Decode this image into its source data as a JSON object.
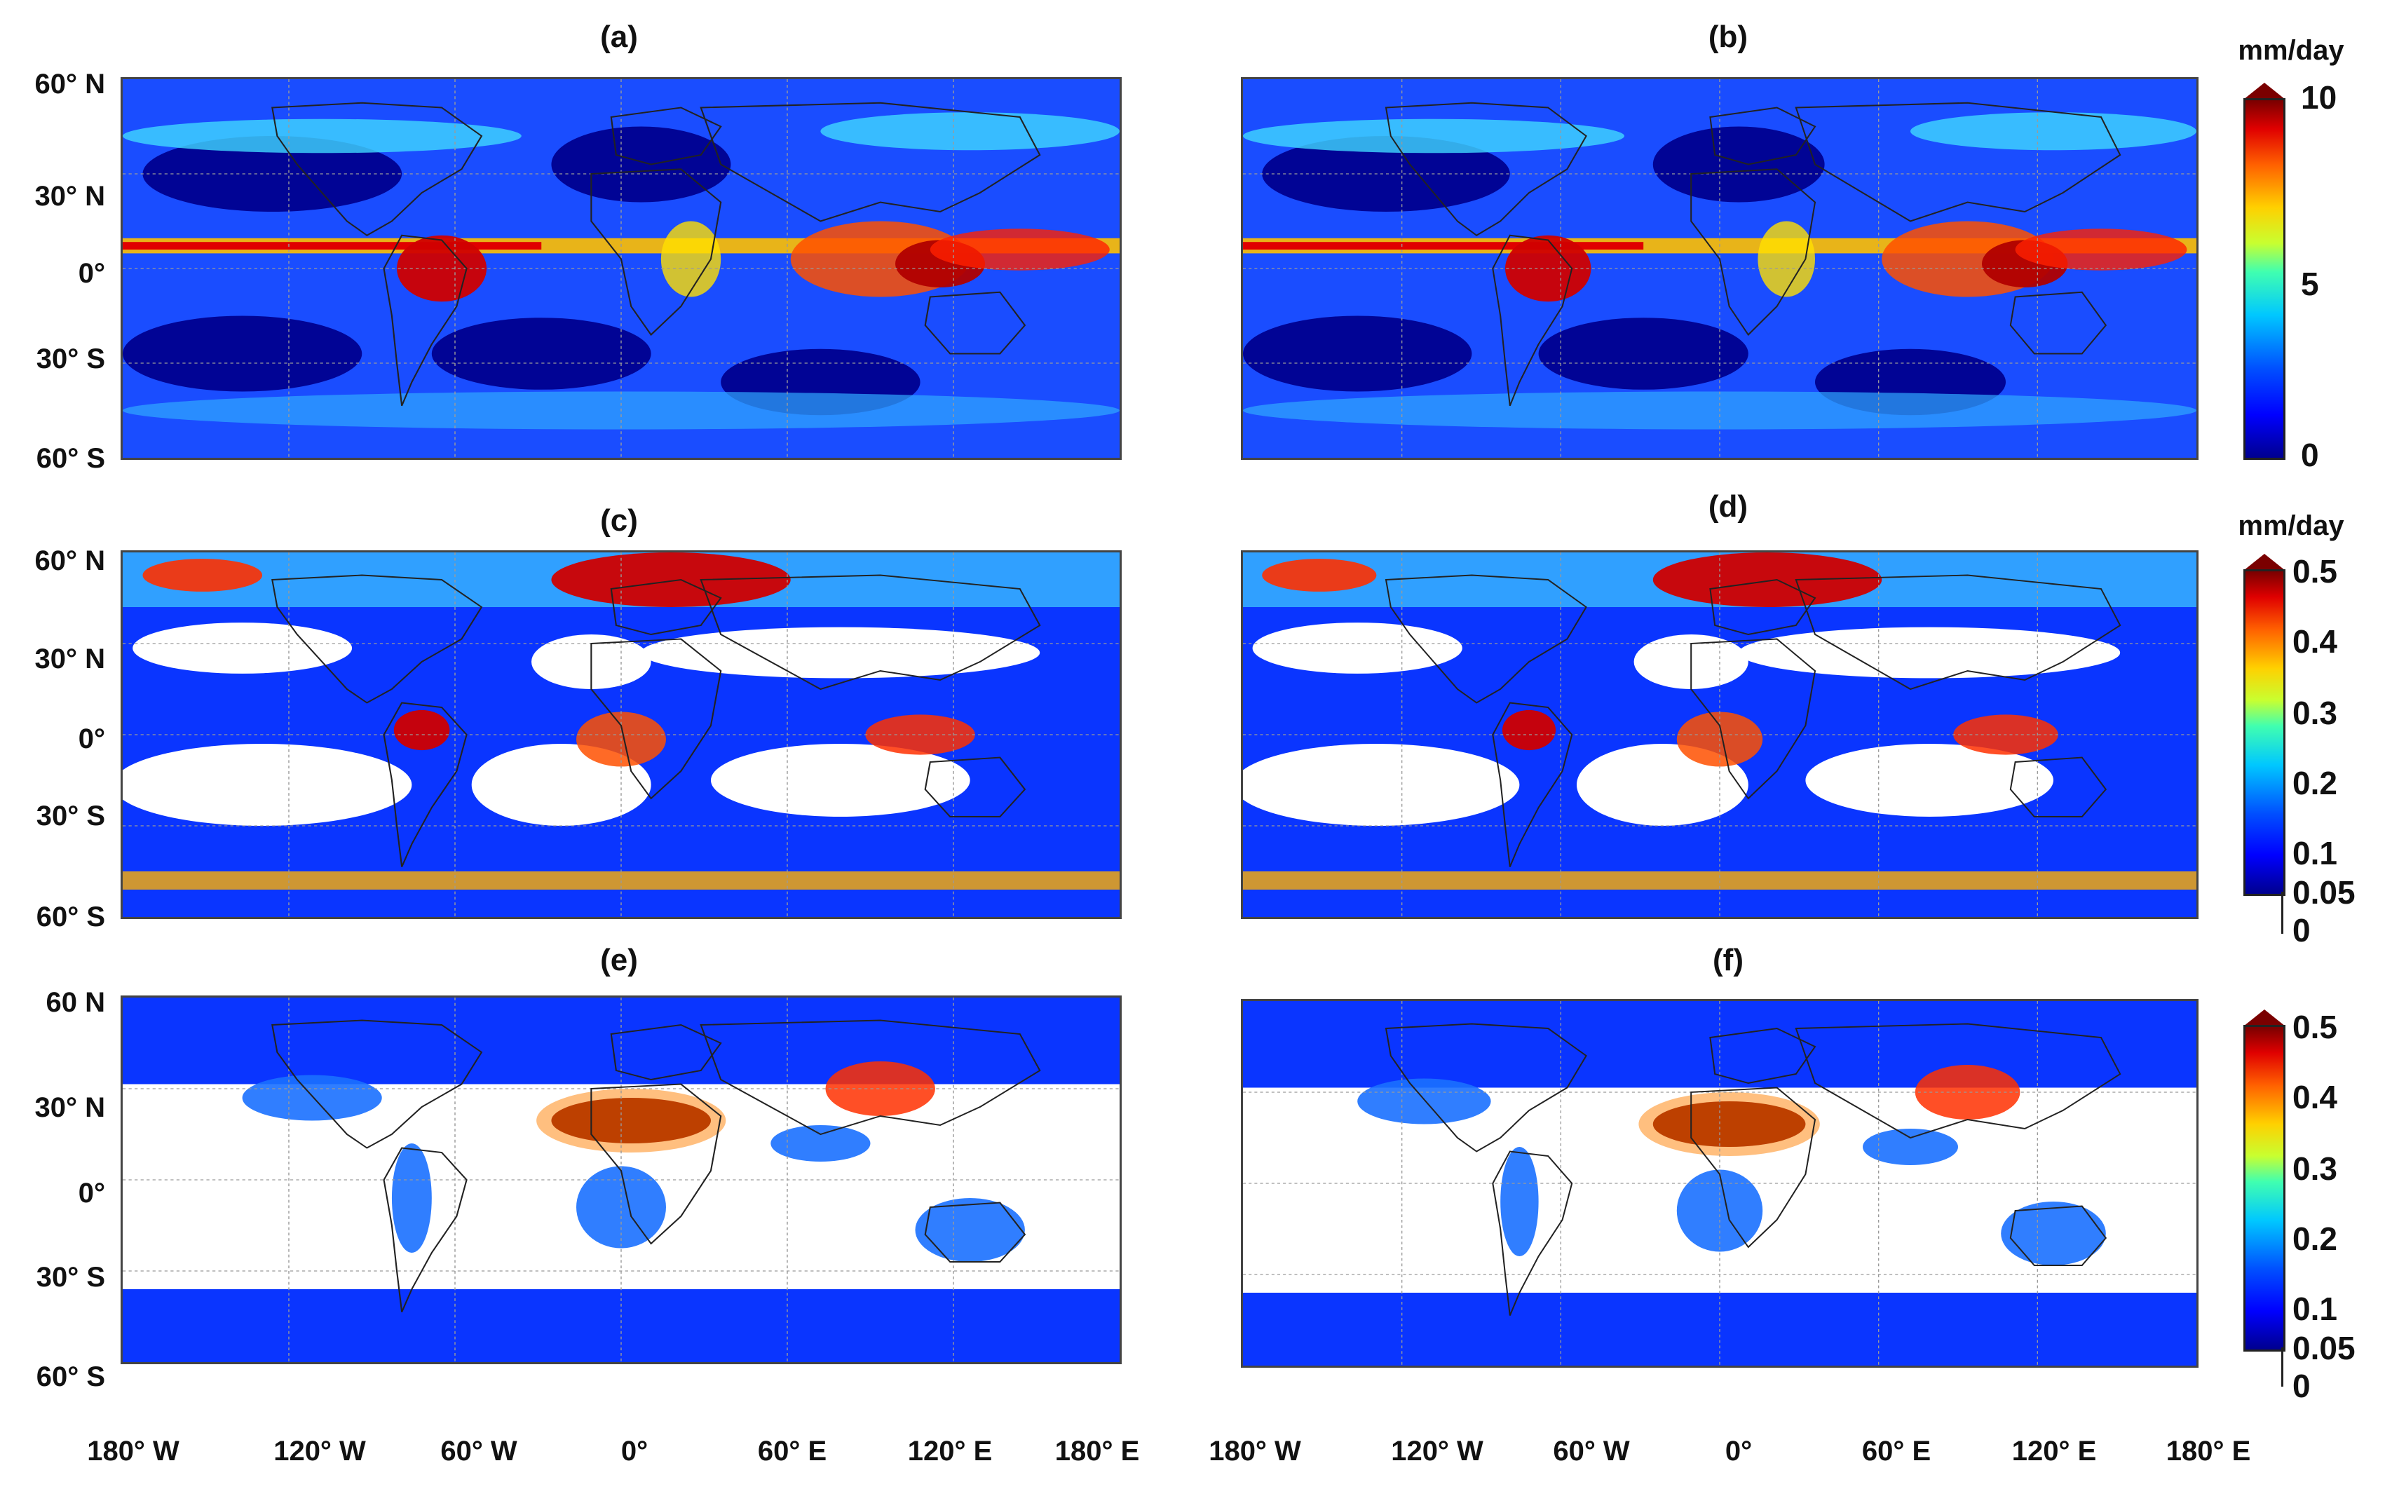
{
  "panels": [
    {
      "id": "a",
      "label": "(a)"
    },
    {
      "id": "b",
      "label": "(b)"
    },
    {
      "id": "c",
      "label": "(c)"
    },
    {
      "id": "d",
      "label": "(d)"
    },
    {
      "id": "e",
      "label": "(e)"
    },
    {
      "id": "f",
      "label": "(f)"
    }
  ],
  "latitude_labels_row1": [
    "60° N",
    "30° N",
    "0°",
    "30° S",
    "60° S"
  ],
  "latitude_labels_row2": [
    "60° N",
    "30° N",
    "0°",
    "30° S",
    "60° S"
  ],
  "latitude_labels_row3": [
    "60  N",
    "30° N",
    "0°",
    "30° S",
    "60° S"
  ],
  "longitude_labels_left": [
    "180° W",
    "120° W",
    "60° W",
    "0°",
    "60° E",
    "120° E",
    "180° E"
  ],
  "longitude_labels_right": [
    "180° W",
    "120° W",
    "60° W",
    "0°",
    "60° E",
    "120° E",
    "180° E"
  ],
  "colorbars": [
    {
      "id": "cb-top",
      "unit": "mm/day",
      "ticks": [
        "10",
        "5",
        "0"
      ],
      "range": [
        0,
        10
      ]
    },
    {
      "id": "cb-mid",
      "unit": "mm/day",
      "ticks": [
        "0.5",
        "0.4",
        "0.3",
        "0.2",
        "0.1",
        "0.05",
        "0"
      ],
      "range": [
        0,
        0.5
      ]
    },
    {
      "id": "cb-bot",
      "unit": "",
      "ticks": [
        "0.5",
        "0.4",
        "0.3",
        "0.2",
        "0.1",
        "0.05",
        "0"
      ],
      "range": [
        0,
        0.5
      ]
    }
  ],
  "colors": {
    "low": "#00008f",
    "mid": "#00c8ff",
    "high": "#ffd000",
    "max": "#7a0000",
    "grid": "#9a9a9a",
    "coast": "#222222"
  }
}
